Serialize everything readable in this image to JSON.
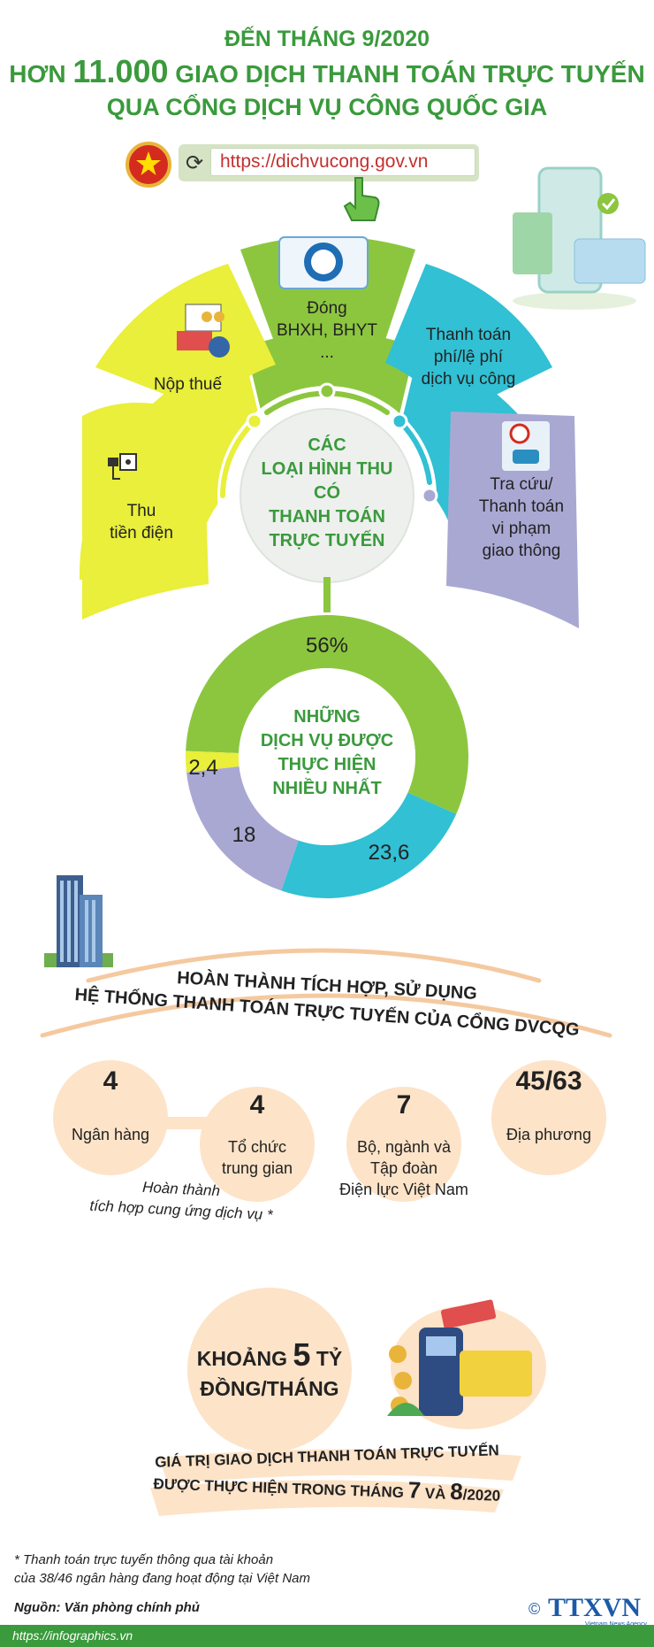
{
  "header": {
    "line1": "ĐẾN THÁNG 9/2020",
    "line2_prefix": "HƠN ",
    "line2_number": "11.000",
    "line2_suffix": " GIAO DỊCH THANH TOÁN TRỰC TUYẾN",
    "line3": "QUA CỔNG DỊCH VỤ CÔNG QUỐC GIA"
  },
  "url": "https://dichvucong.gov.vn",
  "segments": {
    "center_title": [
      "CÁC",
      "LOẠI HÌNH THU",
      "CÓ",
      "THANH TOÁN",
      "TRỰC TUYẾN"
    ],
    "dien": [
      "Thu",
      "tiền điện"
    ],
    "thue": [
      "Nộp thuế"
    ],
    "bhxh": [
      "Đóng",
      "BHXH, BHYT",
      "..."
    ],
    "phi": [
      "Thanh toán",
      "phí/lệ phí",
      "dịch vụ công"
    ],
    "giaothong": [
      "Tra cứu/",
      "Thanh toán",
      "vi phạm",
      "giao thông"
    ]
  },
  "colors": {
    "green": "#8cc63f",
    "yellow": "#e9ef3a",
    "teal": "#31c0d4",
    "lavender": "#a9a8d3",
    "title_green": "#3a9a3c",
    "peach": "#fde3c8"
  },
  "donut": {
    "title": [
      "NHỮNG",
      "DỊCH VỤ ĐƯỢC",
      "THỰC HIỆN",
      "NHIỀU NHẤT"
    ],
    "slices": [
      {
        "label": "56%",
        "value": 56,
        "color": "#8cc63f"
      },
      {
        "label": "23,6",
        "value": 23.6,
        "color": "#31c0d4"
      },
      {
        "label": "18",
        "value": 18,
        "color": "#a9a8d3"
      },
      {
        "label": "2,4",
        "value": 2.4,
        "color": "#e9ef3a"
      }
    ]
  },
  "band": {
    "line1": "HOÀN THÀNH TÍCH HỢP, SỬ DỤNG",
    "line2": "HỆ THỐNG THANH TOÁN TRỰC TUYẾN CỦA CỔNG DVCQG"
  },
  "stats": [
    {
      "number": "4",
      "label": [
        "Ngân hàng"
      ]
    },
    {
      "number": "4",
      "label": [
        "Tổ chức",
        "trung gian"
      ]
    },
    {
      "number": "7",
      "label": [
        "Bộ, ngành và",
        "Tập đoàn",
        "Điện lực Việt Nam"
      ]
    },
    {
      "number": "45/63",
      "label": [
        "Địa phương"
      ]
    }
  ],
  "stats_note": [
    "Hoàn thành",
    "tích hợp cung ứng dịch vụ *"
  ],
  "value_box": {
    "prefix": "KHOẢNG ",
    "number": "5",
    "unit": " TỶ",
    "line2": "ĐỒNG/THÁNG"
  },
  "value_caption": {
    "line1": "GIÁ TRỊ GIAO DỊCH THANH TOÁN TRỰC TUYẾN",
    "line2_prefix": "ĐƯỢC THỰC HIỆN TRONG THÁNG ",
    "m1": "7",
    "and": " VÀ ",
    "m2": "8",
    "year": "/2020"
  },
  "footnote": [
    "* Thanh toán trực tuyến thông qua tài khoản",
    "của 38/46 ngân hàng đang hoạt động tại Việt Nam"
  ],
  "source": "Nguồn: Văn phòng chính phủ",
  "agency": "TTXVN",
  "agency_sub": "Vietnam News Agency",
  "copyright": "©",
  "site": "https://infographics.vn"
}
